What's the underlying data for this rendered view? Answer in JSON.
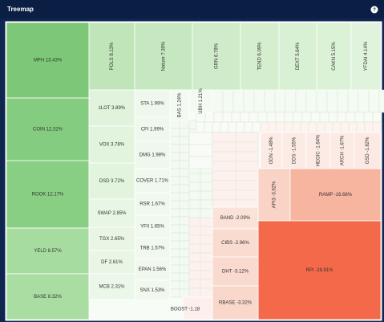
{
  "header": {
    "title": "Treemap",
    "help": "?"
  },
  "tiles": [
    "MPH 13.43%",
    "COIN 12.32%",
    "ROOK 12.17%",
    "YELD 8.57%",
    "BASE 8.32%",
    "POLS 8.13%",
    "Nature 7.39%",
    "GRN 6.78%",
    "TEND 6.09%",
    "DEXT 5.64%",
    "CAKN 5.15%",
    "YFDAI 4.14%",
    "zLOT 3.89%",
    "VOX 3.78%",
    "DSD 3.72%",
    "SWAP 2.85%",
    "TGX 2.65%",
    "DF 2.61%",
    "MCB 2.31%",
    "STA 1.99%",
    "CFI 1.99%",
    "DMG 1.98%",
    "COVER 1.71%",
    "RSR 1.67%",
    "YFII 1.65%",
    "TRB 1.57%",
    "EPAN 1.56%",
    "SNX 1.53%",
    "BAS 1.24%",
    "UBH 1.21%",
    "ODN -1.48%",
    "DDS -1.55%",
    "HEGIC -1.64%",
    "ARCH -1.67%",
    "GSD -1.82%",
    "API3 -3.92%",
    "RAMP -16.66%",
    "RPI -28.91%",
    "BAND -2.09%",
    "CIBS -2.96%",
    "DHT -3.12%",
    "RBASE -3.32%",
    "BOOST -1.18"
  ]
}
